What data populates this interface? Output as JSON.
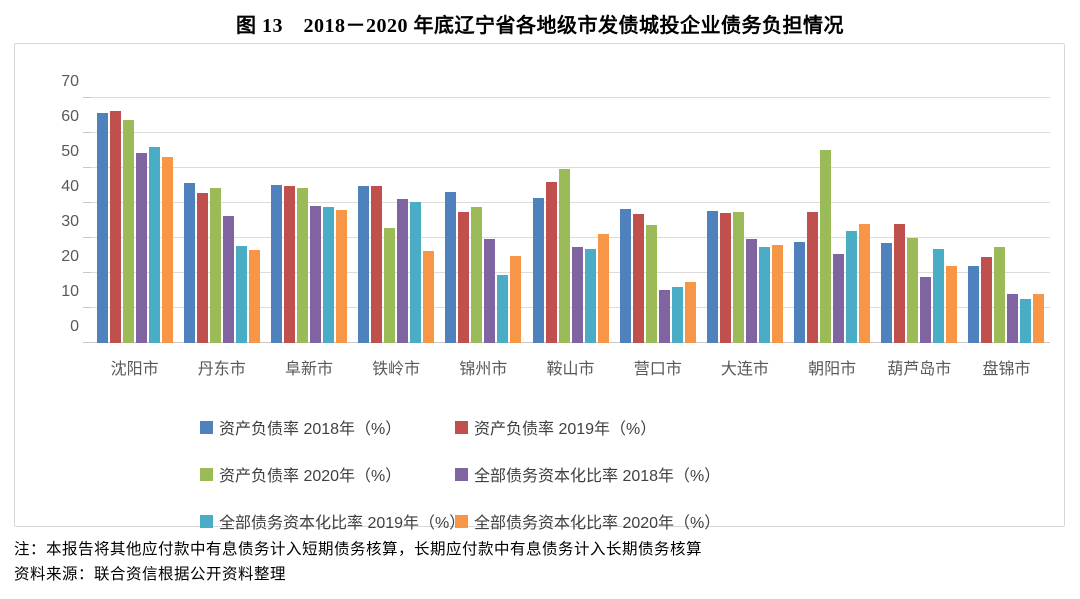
{
  "title": "图 13　2018－2020 年底辽宁省各地级市发债城投企业债务负担情况",
  "chart_data": {
    "type": "bar",
    "title": "图 13　2018－2020 年底辽宁省各地级市发债城投企业债务负担情况",
    "categories": [
      "沈阳市",
      "丹东市",
      "阜新市",
      "铁岭市",
      "锦州市",
      "鞍山市",
      "营口市",
      "大连市",
      "朝阳市",
      "葫芦岛市",
      "盘锦市"
    ],
    "series": [
      {
        "name": "资产负债率 2018年（%）",
        "color": "#4F81BD",
        "values": [
          65.7,
          45.8,
          45.1,
          44.9,
          43.1,
          41.3,
          38.2,
          37.8,
          28.9,
          28.5,
          22.0
        ]
      },
      {
        "name": "资产负债率 2019年（%）",
        "color": "#C0504D",
        "values": [
          66.4,
          42.9,
          45.0,
          44.9,
          37.4,
          46.1,
          37.0,
          37.1,
          37.5,
          33.9,
          24.5
        ]
      },
      {
        "name": "资产负债率 2020年（%）",
        "color": "#9BBB59",
        "values": [
          63.8,
          44.4,
          44.3,
          33.0,
          38.9,
          49.8,
          33.6,
          37.4,
          55.2,
          30.1,
          27.5
        ]
      },
      {
        "name": "全部债务资本化比率 2018年（%）",
        "color": "#8064A2",
        "values": [
          54.3,
          36.2,
          39.2,
          41.2,
          29.8,
          27.4,
          15.2,
          29.8,
          25.3,
          18.9,
          13.9
        ]
      },
      {
        "name": "全部债务资本化比率 2019年（%）",
        "color": "#4BACC6",
        "values": [
          56.0,
          27.7,
          38.8,
          40.4,
          19.5,
          27.0,
          16.1,
          27.4,
          31.9,
          26.8,
          12.5
        ]
      },
      {
        "name": "全部债务资本化比率 2020年（%）",
        "color": "#F79646",
        "values": [
          53.1,
          26.5,
          38.1,
          26.4,
          24.9,
          31.1,
          17.5,
          28.1,
          33.9,
          22.0,
          14.1
        ]
      }
    ],
    "xlabel": "",
    "ylabel": "",
    "ylim": [
      0,
      70
    ],
    "yticks": [
      0,
      10,
      20,
      30,
      40,
      50,
      60,
      70
    ],
    "grid": true,
    "legend_position": "bottom"
  },
  "notes": {
    "note1": "注：本报告将其他应付款中有息债务计入短期债务核算，长期应付款中有息债务计入长期债务核算",
    "note2": "资料来源：联合资信根据公开资料整理"
  }
}
